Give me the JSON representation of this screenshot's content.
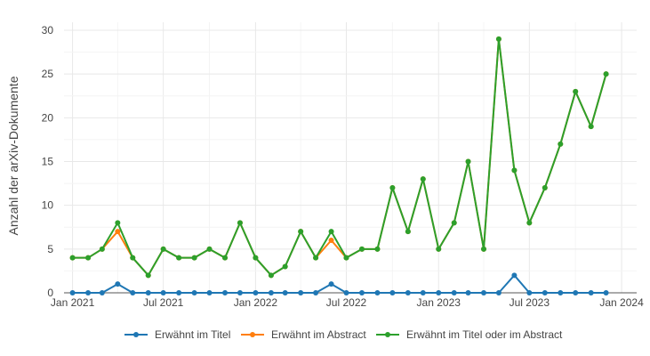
{
  "chart_data": {
    "type": "line",
    "title": "",
    "xlabel": "",
    "ylabel": "Anzahl der arXiv-Dokumente",
    "ylim": [
      0,
      30
    ],
    "yticks": [
      0,
      5,
      10,
      15,
      20,
      25,
      30
    ],
    "xlim": [
      "2020-12-15",
      "2024-01-31"
    ],
    "xticks": [
      {
        "date": "2021-01-01",
        "label": "Jan 2021"
      },
      {
        "date": "2021-07-01",
        "label": "Jul 2021"
      },
      {
        "date": "2022-01-01",
        "label": "Jan 2022"
      },
      {
        "date": "2022-07-01",
        "label": "Jul 2022"
      },
      {
        "date": "2023-01-01",
        "label": "Jan 2023"
      },
      {
        "date": "2023-07-01",
        "label": "Jul 2023"
      },
      {
        "date": "2024-01-01",
        "label": "Jan 2024"
      }
    ],
    "grid": true,
    "legend_position": "bottom",
    "x": [
      "2021-01",
      "2021-02",
      "2021-03",
      "2021-04",
      "2021-05",
      "2021-06",
      "2021-07",
      "2021-08",
      "2021-09",
      "2021-10",
      "2021-11",
      "2021-12",
      "2022-01",
      "2022-02",
      "2022-03",
      "2022-04",
      "2022-05",
      "2022-06",
      "2022-07",
      "2022-08",
      "2022-09",
      "2022-10",
      "2022-11",
      "2022-12",
      "2023-01",
      "2023-02",
      "2023-03",
      "2023-04",
      "2023-05",
      "2023-06",
      "2023-07",
      "2023-08",
      "2023-09",
      "2023-10",
      "2023-11",
      "2023-12"
    ],
    "series": [
      {
        "name": "Erwähnt im Titel",
        "color": "#1f77b4",
        "values": [
          0,
          0,
          0,
          1,
          0,
          0,
          0,
          0,
          0,
          0,
          0,
          0,
          0,
          0,
          0,
          0,
          0,
          1,
          0,
          0,
          0,
          0,
          0,
          0,
          0,
          0,
          0,
          0,
          0,
          2,
          0,
          0,
          0,
          0,
          0,
          0
        ]
      },
      {
        "name": "Erwähnt im Abstract",
        "color": "#ff7f0e",
        "values": [
          4,
          4,
          5,
          7,
          4,
          2,
          5,
          4,
          4,
          5,
          4,
          8,
          4,
          2,
          3,
          7,
          4,
          6,
          4,
          5,
          5,
          12,
          7,
          13,
          5,
          8,
          15,
          5,
          29,
          14,
          8,
          12,
          17,
          23,
          19,
          25
        ]
      },
      {
        "name": "Erwähnt im Titel oder im Abstract",
        "color": "#2ca02c",
        "values": [
          4,
          4,
          5,
          8,
          4,
          2,
          5,
          4,
          4,
          5,
          4,
          8,
          4,
          2,
          3,
          7,
          4,
          7,
          4,
          5,
          5,
          12,
          7,
          13,
          5,
          8,
          15,
          5,
          29,
          14,
          8,
          12,
          17,
          23,
          19,
          25
        ]
      }
    ]
  }
}
